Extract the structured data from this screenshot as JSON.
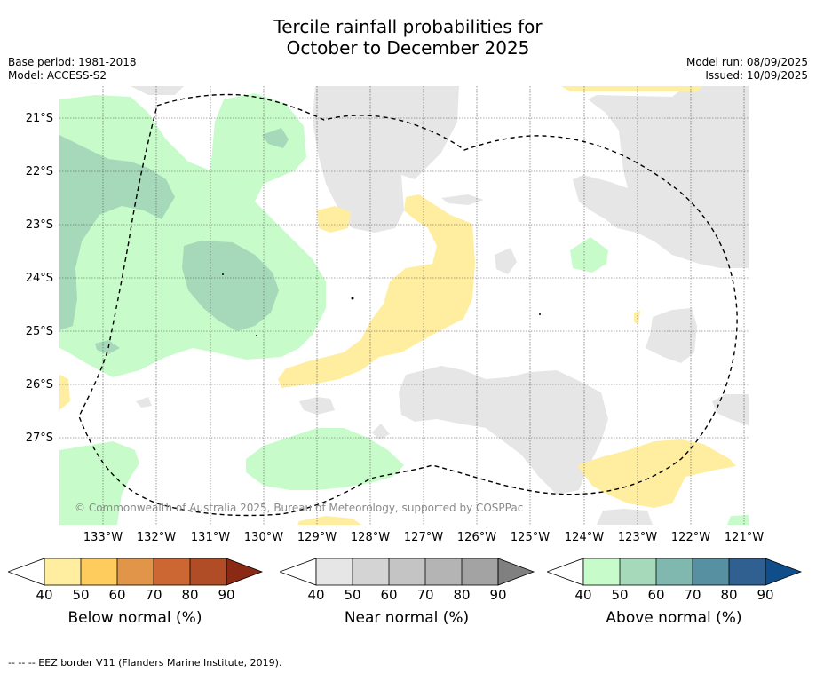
{
  "title_line1": "Tercile rainfall probabilities for",
  "title_line2": "October to December 2025",
  "base_period": "Base period: 1981-2018",
  "model": "Model: ACCESS-S2",
  "model_run": "Model run: 08/09/2025",
  "issued": "Issued: 10/09/2025",
  "map": {
    "lat_labels": [
      "21°S",
      "22°S",
      "23°S",
      "24°S",
      "25°S",
      "26°S",
      "27°S"
    ],
    "lon_labels": [
      "133°W",
      "132°W",
      "131°W",
      "130°W",
      "129°W",
      "128°W",
      "127°W",
      "126°W",
      "125°W",
      "124°W",
      "123°W",
      "122°W",
      "121°W"
    ],
    "copyright": "© Commonwealth of Australia 2025, Bureau of Meteorology, supported by COSPPac"
  },
  "colorbars": [
    {
      "title": "Below normal (%)",
      "ticks": [
        "40",
        "50",
        "60",
        "70",
        "80",
        "90"
      ],
      "colors": [
        "#ffeda0",
        "#fecc5c",
        "#e09548",
        "#cc6633",
        "#b04c26",
        "#8b2a14"
      ]
    },
    {
      "title": "Near normal (%)",
      "ticks": [
        "40",
        "50",
        "60",
        "70",
        "80",
        "90"
      ],
      "colors": [
        "#e6e6e6",
        "#d4d4d4",
        "#c4c4c4",
        "#b4b4b4",
        "#a3a3a3",
        "#808080"
      ]
    },
    {
      "title": "Above normal (%)",
      "ticks": [
        "40",
        "50",
        "60",
        "70",
        "80",
        "90"
      ],
      "colors": [
        "#c7fcca",
        "#a5d9b9",
        "#80b8b0",
        "#5790a0",
        "#306090",
        "#104e8b"
      ]
    }
  ],
  "footer": "-- -- -- EEZ border V11 (Flanders Marine Institute, 2019).",
  "colors": {
    "below": "#ffeda0",
    "near": "#e6e6e6",
    "above_light": "#c7fcca",
    "above_dark": "#a5d9b9"
  }
}
